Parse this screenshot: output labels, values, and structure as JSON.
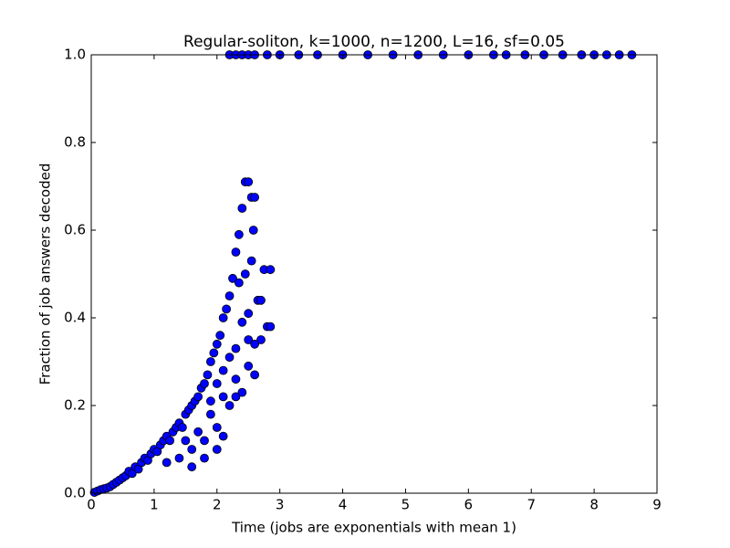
{
  "chart_data": {
    "type": "scatter",
    "title": "Regular-soliton, k=1000, n=1200, L=16, sf=0.05",
    "x_label": "Time (jobs are exponentials with mean 1)",
    "y_label": "Fraction of job answers decoded",
    "color": "#0000ff",
    "x": [
      0.05,
      0.1,
      0.15,
      0.2,
      0.25,
      0.3,
      0.35,
      0.4,
      0.45,
      0.5,
      0.55,
      0.6,
      0.65,
      0.7,
      0.75,
      0.8,
      0.85,
      0.9,
      0.95,
      1.0,
      1.05,
      1.1,
      1.15,
      1.2,
      1.25,
      1.3,
      1.35,
      1.4,
      1.45,
      1.5,
      1.55,
      1.6,
      1.65,
      1.7,
      1.75,
      1.8,
      1.85,
      1.9,
      1.95,
      2.0,
      2.05,
      2.1,
      2.15,
      2.2,
      2.25,
      2.3,
      2.35,
      2.4,
      2.45,
      2.5,
      2.55,
      2.6,
      2.58,
      1.2,
      1.4,
      1.6,
      1.8,
      2.0,
      2.2,
      2.4,
      2.6,
      1.5,
      1.7,
      1.9,
      2.1,
      2.3,
      2.5,
      2.7,
      2.8,
      2.85,
      2.65,
      2.7,
      2.75,
      2.85,
      2.4,
      2.5,
      2.35,
      2.45,
      2.55,
      2.2,
      2.3,
      2.0,
      2.1,
      1.9,
      2.5,
      2.6,
      2.3,
      2.0,
      1.8,
      1.6,
      2.1,
      2.2,
      2.3,
      2.4,
      2.5,
      2.6,
      2.8,
      3.0,
      3.3,
      3.6,
      4.0,
      4.4,
      4.8,
      5.2,
      5.6,
      6.0,
      6.4,
      6.6,
      6.9,
      7.2,
      7.5,
      7.8,
      8.0,
      8.2,
      8.4,
      8.6
    ],
    "values": [
      0.002,
      0.005,
      0.008,
      0.01,
      0.012,
      0.015,
      0.02,
      0.025,
      0.03,
      0.035,
      0.04,
      0.05,
      0.045,
      0.06,
      0.055,
      0.07,
      0.08,
      0.075,
      0.09,
      0.1,
      0.095,
      0.11,
      0.12,
      0.13,
      0.12,
      0.14,
      0.15,
      0.16,
      0.15,
      0.18,
      0.19,
      0.2,
      0.21,
      0.22,
      0.24,
      0.25,
      0.27,
      0.3,
      0.32,
      0.34,
      0.36,
      0.4,
      0.42,
      0.45,
      0.49,
      0.55,
      0.59,
      0.65,
      0.71,
      0.71,
      0.675,
      0.675,
      0.6,
      0.07,
      0.08,
      0.1,
      0.12,
      0.15,
      0.2,
      0.23,
      0.27,
      0.12,
      0.14,
      0.18,
      0.22,
      0.26,
      0.29,
      0.35,
      0.38,
      0.38,
      0.44,
      0.44,
      0.51,
      0.51,
      0.39,
      0.41,
      0.48,
      0.5,
      0.53,
      0.31,
      0.33,
      0.25,
      0.28,
      0.21,
      0.35,
      0.34,
      0.22,
      0.1,
      0.08,
      0.06,
      0.13,
      1.0,
      1.0,
      1.0,
      1.0,
      1.0,
      1.0,
      1.0,
      1.0,
      1.0,
      1.0,
      1.0,
      1.0,
      1.0,
      1.0,
      1.0,
      1.0,
      1.0,
      1.0,
      1.0,
      1.0,
      1.0,
      1.0,
      1.0,
      1.0,
      1.0
    ],
    "xlim": [
      0,
      9
    ],
    "xticks": [
      0,
      1,
      2,
      3,
      4,
      5,
      6,
      7,
      8,
      9
    ],
    "ylim": [
      0,
      1
    ],
    "yticks": [
      {
        "value": 0,
        "label": "0.0"
      },
      0.2,
      0.4,
      0.6,
      0.8,
      {
        "value": 1,
        "label": "1.0"
      }
    ],
    "grid": false
  }
}
